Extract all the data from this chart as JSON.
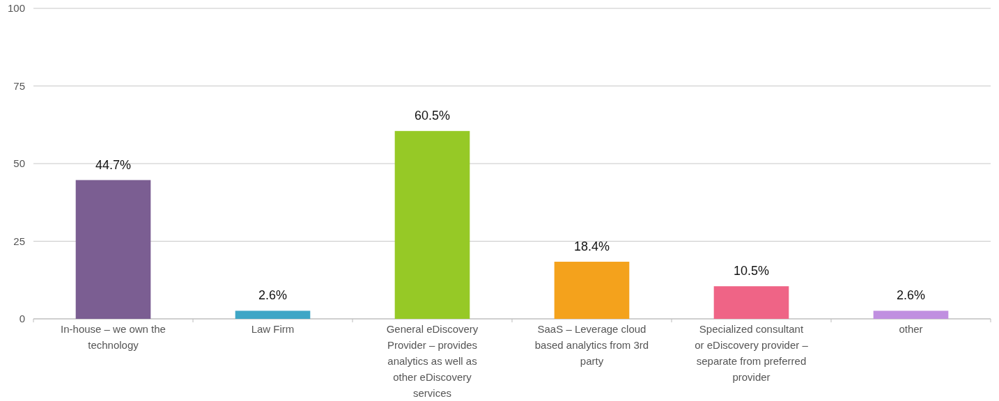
{
  "chart_data": {
    "type": "bar",
    "categories": [
      "In-house – we own the technology",
      "Law Firm",
      "General eDiscovery Provider – provides analytics as well as other eDiscovery services",
      "SaaS – Leverage cloud based analytics from 3rd party",
      "Specialized consultant or eDiscovery provider – separate from preferred provider",
      "other"
    ],
    "values": [
      44.7,
      2.6,
      60.5,
      18.4,
      10.5,
      2.6
    ],
    "colors": [
      "#7b5e92",
      "#3fa6c6",
      "#96c926",
      "#f4a21c",
      "#ef6486",
      "#c08fe0"
    ],
    "value_labels": [
      "44.7%",
      "2.6%",
      "60.5%",
      "18.4%",
      "10.5%",
      "2.6%"
    ],
    "ylim": [
      0,
      100
    ],
    "yticks": [
      0,
      25,
      50,
      75,
      100
    ],
    "grid": "y"
  }
}
